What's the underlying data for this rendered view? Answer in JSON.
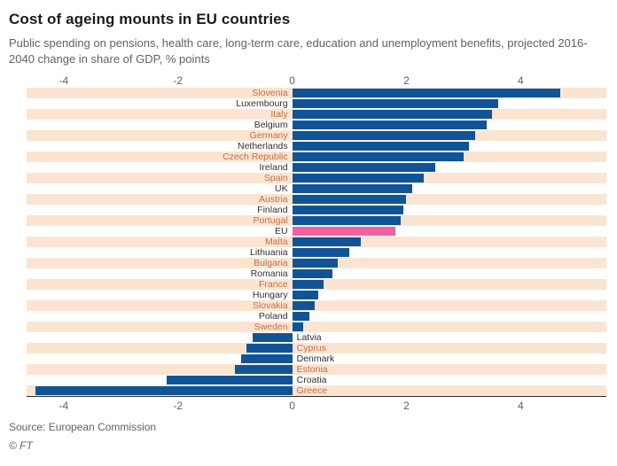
{
  "header": {
    "title": "Cost of ageing mounts in EU countries",
    "subtitle": "Public spending on pensions, health care, long-term care, education and unemployment benefits, projected 2016-2040 change in share of GDP, % points"
  },
  "chart_data": {
    "type": "bar",
    "orientation": "horizontal",
    "title": "Cost of ageing mounts in EU countries",
    "xlabel": "",
    "ylabel": "",
    "units": "% points of GDP, projected 2016-2040 change",
    "categories": [
      "Slovenia",
      "Luxembourg",
      "Italy",
      "Belgium",
      "Germany",
      "Netherlands",
      "Czech Republic",
      "Ireland",
      "Spain",
      "UK",
      "Austria",
      "Finland",
      "Portugal",
      "EU",
      "Malta",
      "Lithuania",
      "Bulgaria",
      "Romania",
      "France",
      "Hungary",
      "Slovakia",
      "Poland",
      "Sweden",
      "Latvia",
      "Cyprus",
      "Denmark",
      "Estonia",
      "Croatia",
      "Greece"
    ],
    "values": [
      4.7,
      3.6,
      3.5,
      3.4,
      3.2,
      3.1,
      3.0,
      2.5,
      2.3,
      2.1,
      2.0,
      1.95,
      1.9,
      1.8,
      1.2,
      1.0,
      0.8,
      0.7,
      0.55,
      0.45,
      0.4,
      0.3,
      0.2,
      -0.7,
      -0.8,
      -0.9,
      -1.0,
      -2.2,
      -4.5
    ],
    "highlight_category": "EU",
    "xlim": [
      -4.65,
      5.5
    ],
    "ticks": [
      -4,
      -2,
      0,
      2,
      4
    ],
    "legend": "none",
    "grid": "off",
    "colors": {
      "bar": "#0f5499",
      "highlight": "#f560a0",
      "stripe": "#fbe5d0",
      "label_striped": "#ca6d43",
      "label_plain": "#33302e"
    }
  },
  "footer": {
    "source": "Source: European Commission",
    "credit": "© FT"
  }
}
